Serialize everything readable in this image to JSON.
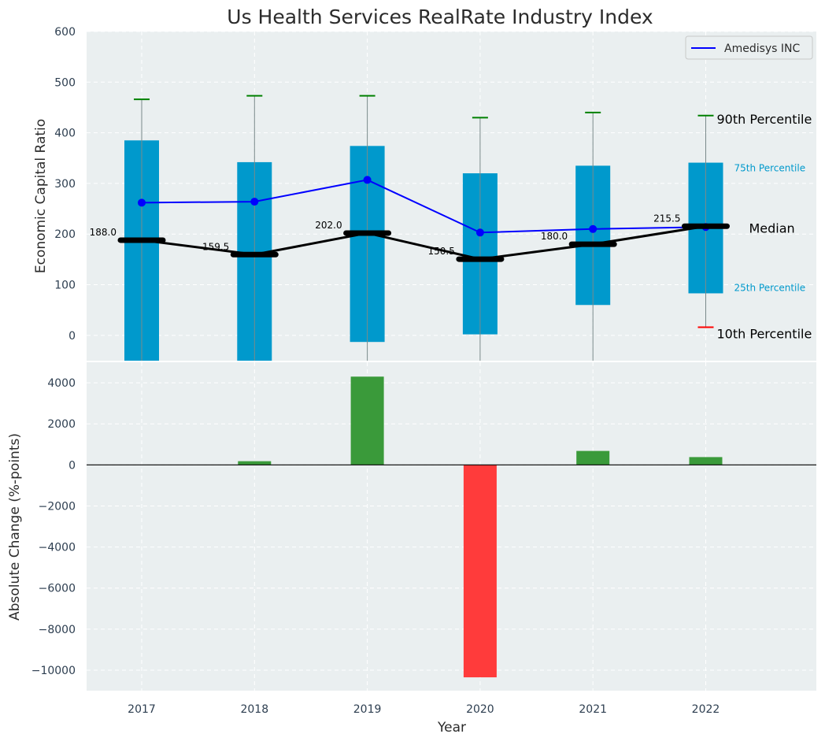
{
  "chart_data": [
    {
      "type": "box",
      "title": "Us Health Services RealRate Industry Index",
      "ylabel": "Economic Capital Ratio",
      "ylim": [
        -50,
        600
      ],
      "yticks": [
        0,
        100,
        200,
        300,
        400,
        500,
        600
      ],
      "categories": [
        "2017",
        "2018",
        "2019",
        "2020",
        "2021",
        "2022"
      ],
      "boxes": {
        "p10": [
          -60,
          -60,
          -60,
          -60,
          -60,
          16
        ],
        "p25": [
          -60,
          -60,
          -13,
          2,
          60,
          83
        ],
        "median": [
          188.0,
          159.5,
          202.0,
          150.5,
          180.0,
          215.5
        ],
        "p75": [
          385,
          342,
          374,
          320,
          335,
          341
        ],
        "p90": [
          466,
          473,
          473,
          430,
          440,
          434
        ]
      },
      "median_labels": [
        "188.0",
        "159.5",
        "202.0",
        "150.5",
        "180.0",
        "215.5"
      ],
      "series": [
        {
          "name": "Amedisys INC",
          "values": [
            262,
            264,
            307,
            203,
            210,
            214
          ],
          "color": "#0000ff"
        }
      ],
      "legend_position": "top-right",
      "annotations": {
        "p90": "90th Percentile",
        "p75": "75th Percentile",
        "median": "Median",
        "p25": "25th Percentile",
        "p10": "10th Percentile"
      },
      "colors": {
        "box": "#0099cc",
        "whisker_top": "#008000",
        "whisker_bottom": "#ff0000",
        "median": "#000000",
        "background": "#eaeff0"
      }
    },
    {
      "type": "bar",
      "xlabel": "Year",
      "ylabel": "Absolute Change (%-points)",
      "ylim": [
        -11000,
        5000
      ],
      "yticks": [
        -10000,
        -8000,
        -6000,
        -4000,
        -2000,
        0,
        2000,
        4000
      ],
      "ytick_labels": [
        "−10000",
        "−8000",
        "−6000",
        "−4000",
        "−2000",
        "0",
        "2000",
        "4000"
      ],
      "categories": [
        "2017",
        "2018",
        "2019",
        "2020",
        "2021",
        "2022"
      ],
      "values": [
        0,
        180,
        4300,
        -10350,
        680,
        380
      ],
      "colors": {
        "positive": "#3a9a3a",
        "negative": "#ff3b3b"
      }
    }
  ]
}
